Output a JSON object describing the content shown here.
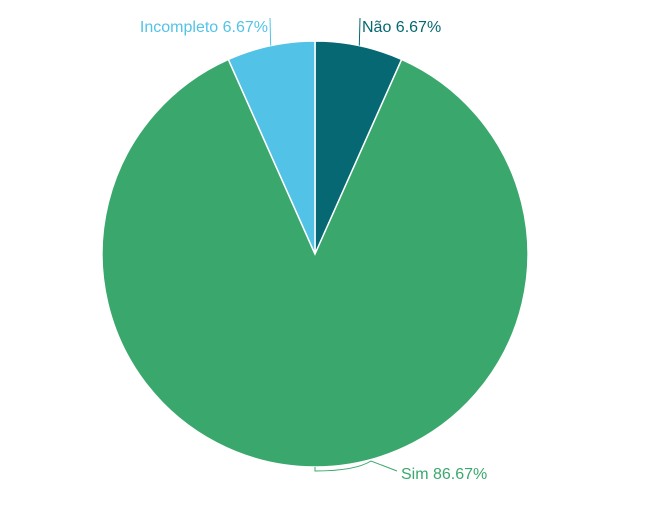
{
  "chart_data": {
    "type": "pie",
    "title": "",
    "slices": [
      {
        "label": "Não",
        "value": 6.67,
        "display": "6.67%",
        "color": "#056872"
      },
      {
        "label": "Sim",
        "value": 86.67,
        "display": "86.67%",
        "color": "#3aa86d"
      },
      {
        "label": "Incompleto",
        "value": 6.67,
        "display": "6.67%",
        "color": "#52c3e6"
      }
    ],
    "start_angle_deg": 0,
    "direction": "clockwise",
    "labels": "outside with leader lines"
  }
}
